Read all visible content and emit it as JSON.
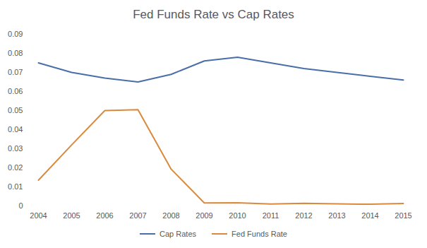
{
  "chart_data": {
    "type": "line",
    "title": "Fed Funds Rate vs Cap Rates",
    "categories": [
      "2004",
      "2005",
      "2006",
      "2007",
      "2008",
      "2009",
      "2010",
      "2011",
      "2012",
      "2013",
      "2014",
      "2015"
    ],
    "series": [
      {
        "name": "Cap Rates",
        "color": "#4a6ea8",
        "values": [
          0.075,
          0.07,
          0.067,
          0.065,
          0.069,
          0.076,
          0.078,
          0.075,
          0.072,
          0.07,
          0.068,
          0.066
        ]
      },
      {
        "name": "Fed Funds Rate",
        "color": "#d98a3d",
        "values": [
          0.0135,
          0.032,
          0.05,
          0.0505,
          0.0193,
          0.0016,
          0.0017,
          0.001,
          0.0014,
          0.0011,
          0.0009,
          0.0013
        ]
      }
    ],
    "ylim": [
      0,
      0.09
    ],
    "yticks": [
      0,
      0.01,
      0.02,
      0.03,
      0.04,
      0.05,
      0.06,
      0.07,
      0.08,
      0.09
    ],
    "grid": false,
    "legend": "bottom"
  }
}
